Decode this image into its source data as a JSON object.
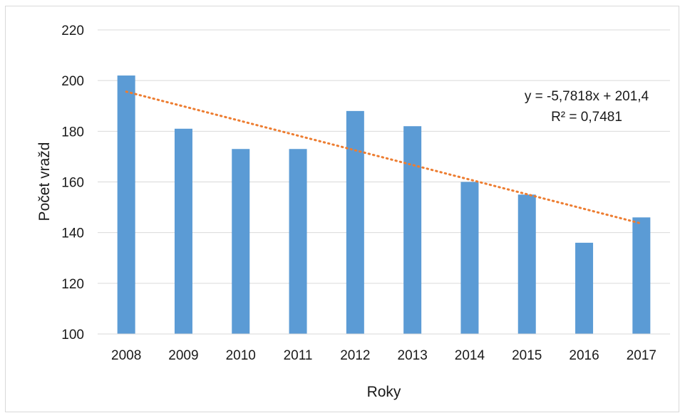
{
  "chart_data": {
    "type": "bar",
    "categories": [
      "2008",
      "2009",
      "2010",
      "2011",
      "2012",
      "2013",
      "2014",
      "2015",
      "2016",
      "2017"
    ],
    "values": [
      202,
      181,
      173,
      173,
      188,
      182,
      160,
      155,
      136,
      146
    ],
    "xlabel": "Roky",
    "ylabel": "Počet vražd",
    "ylim": [
      100,
      220
    ],
    "yticks": [
      100,
      120,
      140,
      160,
      180,
      200,
      220
    ],
    "grid": true,
    "legend": "none",
    "bar_color": "#5b9bd5",
    "trendline": {
      "type": "linear",
      "slope": -5.7818,
      "intercept": 201.4,
      "equation": "y = -5,7818x + 201,4",
      "r_squared": "R² = 0,7481",
      "color": "#ed7d31",
      "style": "dotted"
    }
  }
}
